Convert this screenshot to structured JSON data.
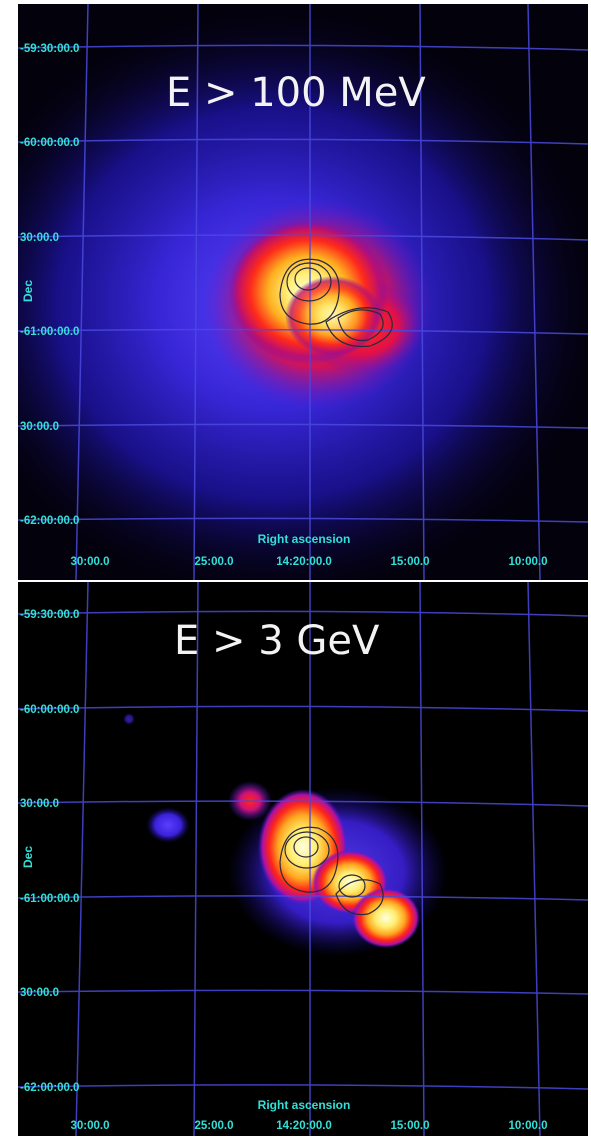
{
  "panels": [
    {
      "title": "E > 100 MeV",
      "dec_ticks": [
        "-59:30:00.0",
        "-60:00:00.0",
        "30:00.0",
        "-61:00:00.0",
        "30:00.0",
        "-62:00:00.0"
      ],
      "ra_ticks": [
        "30:00.0",
        "25:00.0",
        "14:20:00.0",
        "15:00.0",
        "10:00.0"
      ],
      "xlabel": "Right ascension",
      "ylabel": "Dec"
    },
    {
      "title": "E > 3 GeV",
      "dec_ticks": [
        "-59:30:00.0",
        "-60:00:00.0",
        "30:00.0",
        "-61:00:00.0",
        "30:00.0",
        "-62:00:00.0"
      ],
      "ra_ticks": [
        "30:00.0",
        "25:00.0",
        "14:20:00.0",
        "15:00.0",
        "10:00.0"
      ],
      "xlabel": "Right ascension",
      "ylabel": "Dec"
    }
  ],
  "colors": {
    "label": "#33e0d8",
    "grid": "#4a4ae0",
    "background": "#000000"
  }
}
